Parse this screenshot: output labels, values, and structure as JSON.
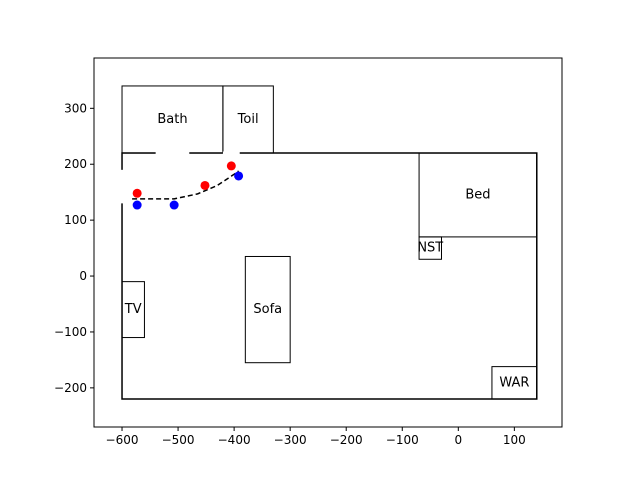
{
  "chart_data": {
    "type": "scatter",
    "title": "",
    "xlabel": "",
    "ylabel": "",
    "xlim": [
      -650,
      185
    ],
    "ylim": [
      -270,
      390
    ],
    "grid": false,
    "x_ticks": [
      -600,
      -500,
      -400,
      -300,
      -200,
      -100,
      0,
      100
    ],
    "y_ticks": [
      -200,
      -100,
      0,
      100,
      200,
      300
    ],
    "x_tick_labels": [
      "−600",
      "−500",
      "−400",
      "−300",
      "−200",
      "−100",
      "0",
      "100"
    ],
    "y_tick_labels": [
      "−200",
      "−100",
      "0",
      "100",
      "200",
      "300"
    ],
    "floor": {
      "outline": [
        [
          -600,
          -220
        ],
        [
          140,
          -220
        ],
        [
          140,
          220
        ],
        [
          -600,
          220
        ]
      ],
      "openings": [
        {
          "side": "top",
          "x0": -540,
          "x1": -480
        },
        {
          "side": "top",
          "x0": -420,
          "x1": -390
        },
        {
          "side": "left",
          "y0": 130,
          "y1": 190
        }
      ]
    },
    "furniture": [
      {
        "label": "Bath",
        "x0": -600,
        "y0": 220,
        "x1": -420,
        "y1": 340
      },
      {
        "label": "Toil",
        "x0": -420,
        "y0": 220,
        "x1": -330,
        "y1": 340
      },
      {
        "label": "Bed",
        "x0": -70,
        "y0": 70,
        "x1": 140,
        "y1": 220
      },
      {
        "label": "NST",
        "x0": -70,
        "y0": 30,
        "x1": -30,
        "y1": 70
      },
      {
        "label": "Sofa",
        "x0": -380,
        "y0": -155,
        "x1": -300,
        "y1": 35
      },
      {
        "label": "TV",
        "x0": -600,
        "y0": -110,
        "x1": -560,
        "y1": -10
      },
      {
        "label": "WAR",
        "x0": 60,
        "y0": -220,
        "x1": 140,
        "y1": -162
      }
    ],
    "series": [
      {
        "color": "#ff0000",
        "marker": "circle",
        "points": [
          [
            -573,
            148
          ],
          [
            -452,
            162
          ],
          [
            -405,
            197
          ]
        ]
      },
      {
        "color": "#0000ff",
        "marker": "circle",
        "points": [
          [
            -573,
            127
          ],
          [
            -507,
            127
          ],
          [
            -392,
            179
          ]
        ]
      }
    ],
    "path": {
      "color": "#000000",
      "style": "dashed",
      "points": [
        [
          -582,
          138
        ],
        [
          -507,
          138
        ],
        [
          -465,
          147
        ],
        [
          -430,
          162
        ],
        [
          -400,
          182
        ],
        [
          -392,
          188
        ]
      ]
    }
  }
}
